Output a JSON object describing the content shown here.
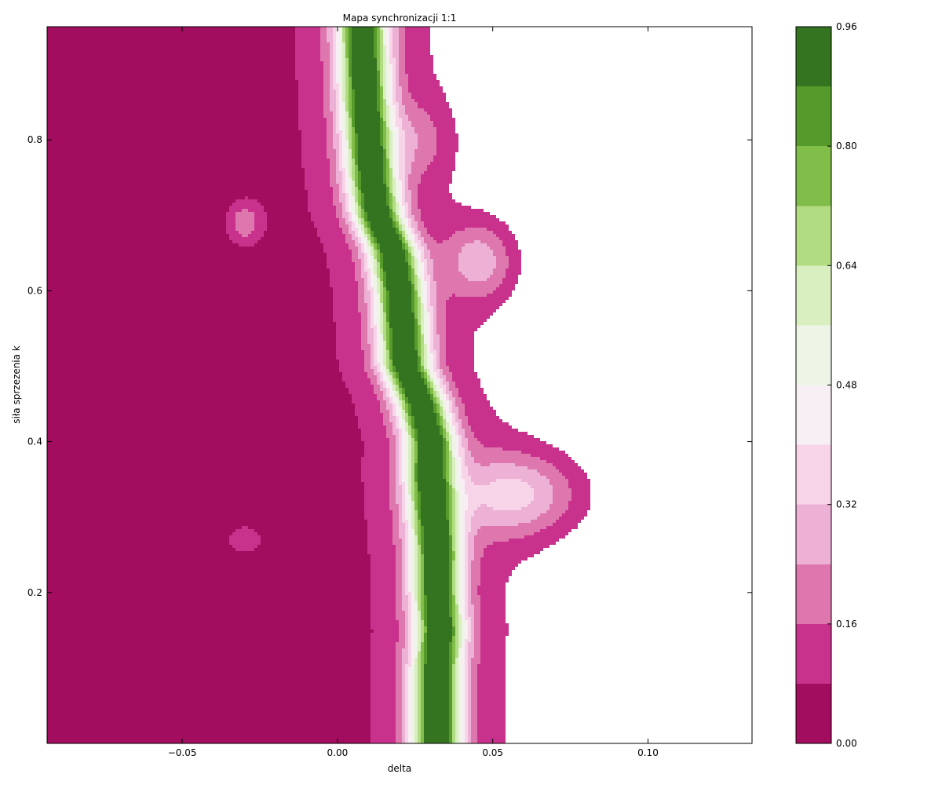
{
  "chart_data": {
    "type": "filled-contour",
    "title": "Mapa synchronizacji 1:1",
    "xlabel": "delta",
    "ylabel": "siła sprzezenia k",
    "xlim": [
      -0.0935,
      0.1335
    ],
    "ylim": [
      0.0,
      0.95
    ],
    "xticks": [
      -0.05,
      0.0,
      0.05,
      0.1
    ],
    "xtick_labels": [
      "−0.05",
      "0.00",
      "0.05",
      "0.10"
    ],
    "yticks": [
      0.2,
      0.4,
      0.6,
      0.8
    ],
    "ytick_labels": [
      "0.2",
      "0.4",
      "0.6",
      "0.8"
    ],
    "colormap": "PiYG",
    "levels": [
      0.0,
      0.08,
      0.16,
      0.24,
      0.32,
      0.4,
      0.48,
      0.56,
      0.64,
      0.72,
      0.8,
      0.88,
      0.96
    ],
    "level_colors": [
      "#a30d5f",
      "#c9328c",
      "#de77ae",
      "#eeb1d6",
      "#f8d4e9",
      "#f7eff3",
      "#eef5e7",
      "#d9efbf",
      "#b2dc82",
      "#81bd49",
      "#559a2a",
      "#347320"
    ],
    "colorbar_ticks": [
      0.0,
      0.16,
      0.32,
      0.48,
      0.64,
      0.8,
      0.96
    ],
    "colorbar_tick_labels": [
      "0.00",
      "0.16",
      "0.32",
      "0.48",
      "0.64",
      "0.80",
      "0.96"
    ],
    "ridge_center": [
      [
        0.95,
        0.008
      ],
      [
        0.85,
        0.009
      ],
      [
        0.75,
        0.011
      ],
      [
        0.7,
        0.013
      ],
      [
        0.65,
        0.018
      ],
      [
        0.6,
        0.02
      ],
      [
        0.55,
        0.021
      ],
      [
        0.5,
        0.022
      ],
      [
        0.45,
        0.027
      ],
      [
        0.4,
        0.03
      ],
      [
        0.35,
        0.03
      ],
      [
        0.3,
        0.031
      ],
      [
        0.25,
        0.032
      ],
      [
        0.2,
        0.032
      ],
      [
        0.15,
        0.033
      ],
      [
        0.1,
        0.032
      ],
      [
        0.05,
        0.032
      ],
      [
        0.0,
        0.032
      ]
    ]
  }
}
